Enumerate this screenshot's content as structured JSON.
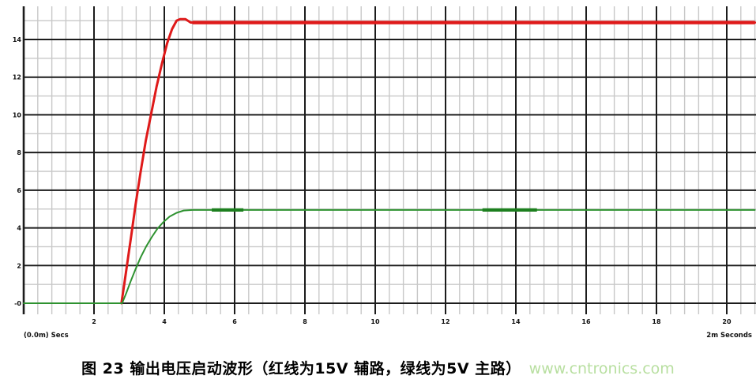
{
  "chart_data": {
    "type": "line",
    "title": "",
    "x_axis": {
      "ticks": [
        2,
        4,
        6,
        8,
        10,
        12,
        14,
        16,
        18,
        20
      ],
      "label_left": "(0.0m) Secs",
      "label_right": "2m Seconds",
      "range": [
        0,
        20.8
      ],
      "major_step": 2,
      "minor_step": 0.4
    },
    "y_axis": {
      "tick_labels": [
        "14",
        "12",
        "10",
        "8",
        "6",
        "4",
        "2",
        "-0"
      ],
      "tick_values": [
        14,
        12,
        10,
        8,
        6,
        4,
        2,
        0
      ],
      "range": [
        -0.6,
        15.8
      ],
      "major_step": 2,
      "minor_step": 1
    },
    "grid": {
      "major_color": "#1c1c1c",
      "minor_color": "#c8c8c8",
      "background": "#ffffff"
    },
    "series": [
      {
        "id": "series-15v-aux",
        "name": "15V 辅路 (red)",
        "color": "#df1a1a",
        "width": 3,
        "points": [
          [
            2.78,
            0
          ],
          [
            2.86,
            1.0
          ],
          [
            2.96,
            2.3
          ],
          [
            3.06,
            3.6
          ],
          [
            3.18,
            5.2
          ],
          [
            3.32,
            6.9
          ],
          [
            3.47,
            8.6
          ],
          [
            3.62,
            10.0
          ],
          [
            3.78,
            11.5
          ],
          [
            3.93,
            12.7
          ],
          [
            4.08,
            13.8
          ],
          [
            4.22,
            14.55
          ],
          [
            4.35,
            15.0
          ],
          [
            4.45,
            15.08
          ],
          [
            4.6,
            15.08
          ],
          [
            4.75,
            14.9
          ],
          [
            20.8,
            14.9
          ]
        ],
        "thick_segments": [
          [
            4.8,
            20.8,
            14.9
          ]
        ],
        "thick_width": 4.4,
        "thick_color": "#df1a1a"
      },
      {
        "id": "series-5v-main",
        "name": "5V 主路 (green)",
        "color": "#2e9230",
        "width": 2,
        "points": [
          [
            0,
            0
          ],
          [
            2.8,
            0
          ],
          [
            2.92,
            0.55
          ],
          [
            3.04,
            1.15
          ],
          [
            3.18,
            1.8
          ],
          [
            3.33,
            2.45
          ],
          [
            3.48,
            3.0
          ],
          [
            3.64,
            3.5
          ],
          [
            3.8,
            3.95
          ],
          [
            3.97,
            4.3
          ],
          [
            4.15,
            4.6
          ],
          [
            4.35,
            4.8
          ],
          [
            4.55,
            4.92
          ],
          [
            4.8,
            4.95
          ],
          [
            20.8,
            4.95
          ]
        ],
        "thick_segments": [
          [
            5.35,
            6.25,
            4.95
          ],
          [
            13.05,
            14.6,
            4.95
          ]
        ],
        "thick_width": 4.2,
        "thick_color": "#1d7f1f"
      }
    ],
    "tick_text_color": "#111111"
  },
  "caption": {
    "text": "图 23 输出电压启动波形（红线为15V 辅路，绿线为5V 主路）",
    "watermark": "www.cntronics.com",
    "watermark_color": "#b8dfa0"
  }
}
